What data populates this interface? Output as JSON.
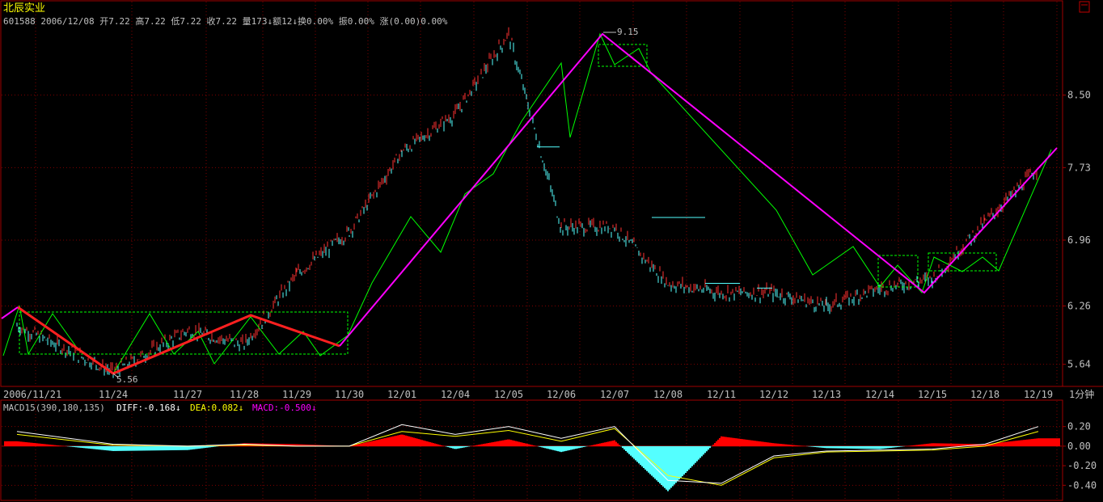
{
  "header": {
    "stock_name": "北辰实业",
    "quote_line": "601588 2006/12/08 开7.22 高7.22 低7.22 收7.22 量173↓额12↓换0.00% 振0.00% 涨(0.00)0.00%"
  },
  "price_panel": {
    "y_axis_labels": [
      "8.50",
      "7.73",
      "6.96",
      "6.26",
      "5.64"
    ],
    "y_min": 5.56,
    "y_max": 9.15,
    "high_label": "9.15",
    "low_label": "5.56"
  },
  "x_axis": {
    "labels": [
      "2006/11/21",
      "11/24",
      "11/27",
      "11/28",
      "11/29",
      "11/30",
      "12/01",
      "12/04",
      "12/05",
      "12/06",
      "12/07",
      "12/08",
      "12/11",
      "12/12",
      "12/13",
      "12/14",
      "12/15",
      "12/18",
      "12/19"
    ],
    "period_label": "1分钟"
  },
  "macd_panel": {
    "title": "MACD15(390,180,135)",
    "diff_label": "DIFF:-0.168↓",
    "dea_label": "DEA:0.082↓",
    "macd_label": "MACD:-0.500↓",
    "y_axis_labels": [
      "0.20",
      "0.00",
      "-0.20",
      "-0.40"
    ]
  },
  "colors": {
    "background": "#000000",
    "grid": "#800000",
    "up_candle": "#ff3232",
    "down_candle": "#54ffff",
    "zigzag_major": "#ff00ff",
    "zigzag_red": "#ff2020",
    "zigzag_minor": "#00ff00",
    "diff_line": "#ffffff",
    "dea_line": "#ffff00",
    "macd_positive": "#ff0000",
    "macd_negative": "#54ffff",
    "text_axis": "#c0c0c0"
  },
  "chart_data": {
    "type": "line",
    "title": "北辰实业",
    "x": [
      "2006/11/21",
      "11/24",
      "11/27",
      "11/28",
      "11/29",
      "11/30",
      "12/01",
      "12/04",
      "12/05",
      "12/06",
      "12/07",
      "12/08",
      "12/11",
      "12/12",
      "12/13",
      "12/14",
      "12/15",
      "12/18",
      "12/19"
    ],
    "ylim": [
      5.56,
      9.15
    ],
    "series": [
      {
        "values": [
          6.05,
          5.56,
          6.0,
          5.85,
          6.6,
          7.05,
          7.9,
          8.3,
          9.15,
          7.1,
          7.1,
          6.5,
          6.4,
          6.4,
          6.26,
          6.45,
          6.55,
          7.15,
          7.73
        ]
      }
    ],
    "turning_points": [
      {
        "x": "2006/11/21",
        "y": 6.05
      },
      {
        "x": "11/24",
        "y": 5.56
      },
      {
        "x": "11/28",
        "y": 6.0
      },
      {
        "x": "11/30",
        "y": 5.85
      },
      {
        "x": "12/07",
        "y": 9.15
      },
      {
        "x": "12/15",
        "y": 6.26
      },
      {
        "x": "12/19",
        "y": 7.73
      }
    ],
    "macd": {
      "ylim": [
        -0.48,
        0.28
      ],
      "diff": [
        0.15,
        0.02,
        0.0,
        0.02,
        0.0,
        0.0,
        0.22,
        0.12,
        0.2,
        0.08,
        0.2,
        -0.35,
        -0.38,
        -0.1,
        -0.05,
        -0.04,
        -0.03,
        0.02,
        0.2
      ],
      "dea": [
        0.12,
        0.01,
        0.0,
        0.01,
        0.0,
        0.0,
        0.15,
        0.1,
        0.16,
        0.05,
        0.18,
        -0.3,
        -0.4,
        -0.12,
        -0.06,
        -0.05,
        -0.04,
        0.0,
        0.15
      ],
      "histogram": [
        0.05,
        -0.05,
        -0.04,
        0.03,
        0.02,
        0.0,
        0.12,
        -0.03,
        0.07,
        -0.06,
        0.06,
        -0.46,
        0.1,
        0.03,
        -0.02,
        -0.03,
        0.03,
        0.02,
        0.08
      ]
    },
    "grid": true
  }
}
